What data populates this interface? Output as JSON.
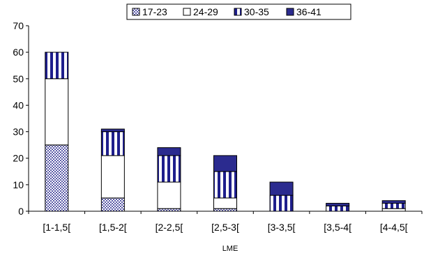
{
  "chart_data": {
    "type": "bar",
    "stacked": true,
    "xlabel": "LME",
    "ylabel": "",
    "title": "",
    "ylim": [
      0,
      70
    ],
    "yticks": [
      0,
      10,
      20,
      30,
      40,
      50,
      60,
      70
    ],
    "grid": false,
    "legend_position": "top",
    "categories": [
      "[1-1,5[",
      "[1,5-2[",
      "[2-2,5[",
      "[2,5-3[",
      "[3-3,5[",
      "[3,5-4[",
      "[4-4,5["
    ],
    "series": [
      {
        "name": "17-23",
        "pattern": "checker",
        "color": "#5a5aa8",
        "values": [
          25,
          5,
          1,
          1,
          0,
          0,
          0
        ]
      },
      {
        "name": "24-29",
        "pattern": "solid",
        "color": "#ffffff",
        "values": [
          25,
          16,
          10,
          4,
          0,
          0,
          1
        ]
      },
      {
        "name": "30-35",
        "pattern": "vertical-stripes",
        "color": "#1e1e8c",
        "values": [
          10,
          9,
          10,
          10,
          6,
          2,
          2
        ]
      },
      {
        "name": "36-41",
        "pattern": "solid",
        "color": "#2b2b8f",
        "values": [
          0,
          1,
          3,
          6,
          5,
          1,
          1
        ]
      }
    ]
  }
}
